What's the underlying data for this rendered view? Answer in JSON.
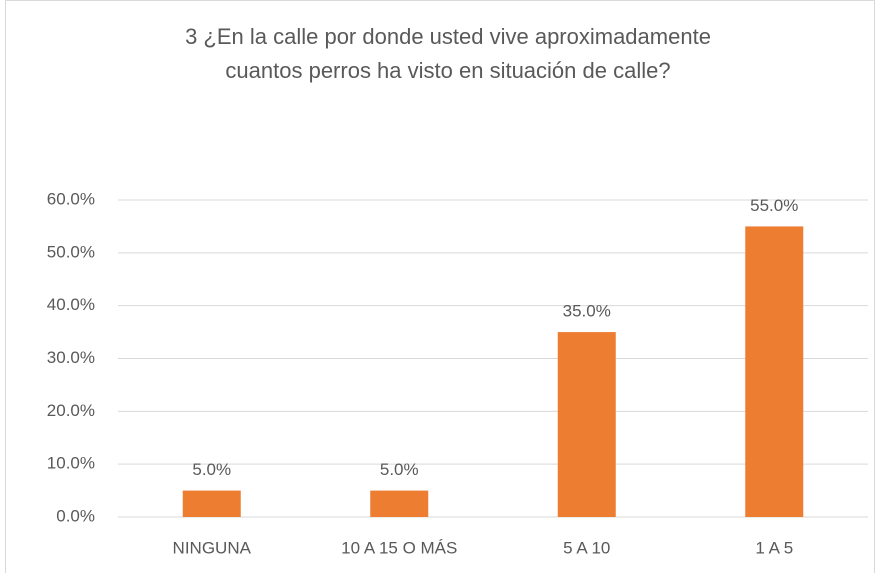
{
  "chart_data": {
    "type": "bar",
    "title": [
      "3 ¿En la calle por donde usted vive aproximadamente",
      "cuantos perros ha visto en situación de calle?"
    ],
    "categories": [
      "NINGUNA",
      "10 A 15 O MÁS",
      "5 A 10",
      "1 A 5"
    ],
    "values": [
      5,
      5,
      35,
      55
    ],
    "value_labels": [
      "5.0%",
      "5.0%",
      "35.0%",
      "55.0%"
    ],
    "color": "#ed7d31",
    "ylim": [
      0,
      60
    ],
    "yticks": [
      {
        "value": 0,
        "label": "0.0%"
      },
      {
        "value": 10,
        "label": "10.0%"
      },
      {
        "value": 20,
        "label": "20.0%"
      },
      {
        "value": 30,
        "label": "30.0%"
      },
      {
        "value": 40,
        "label": "40.0%"
      },
      {
        "value": 50,
        "label": "50.0%"
      },
      {
        "value": 60,
        "label": "60.0%"
      }
    ],
    "grid": true
  }
}
